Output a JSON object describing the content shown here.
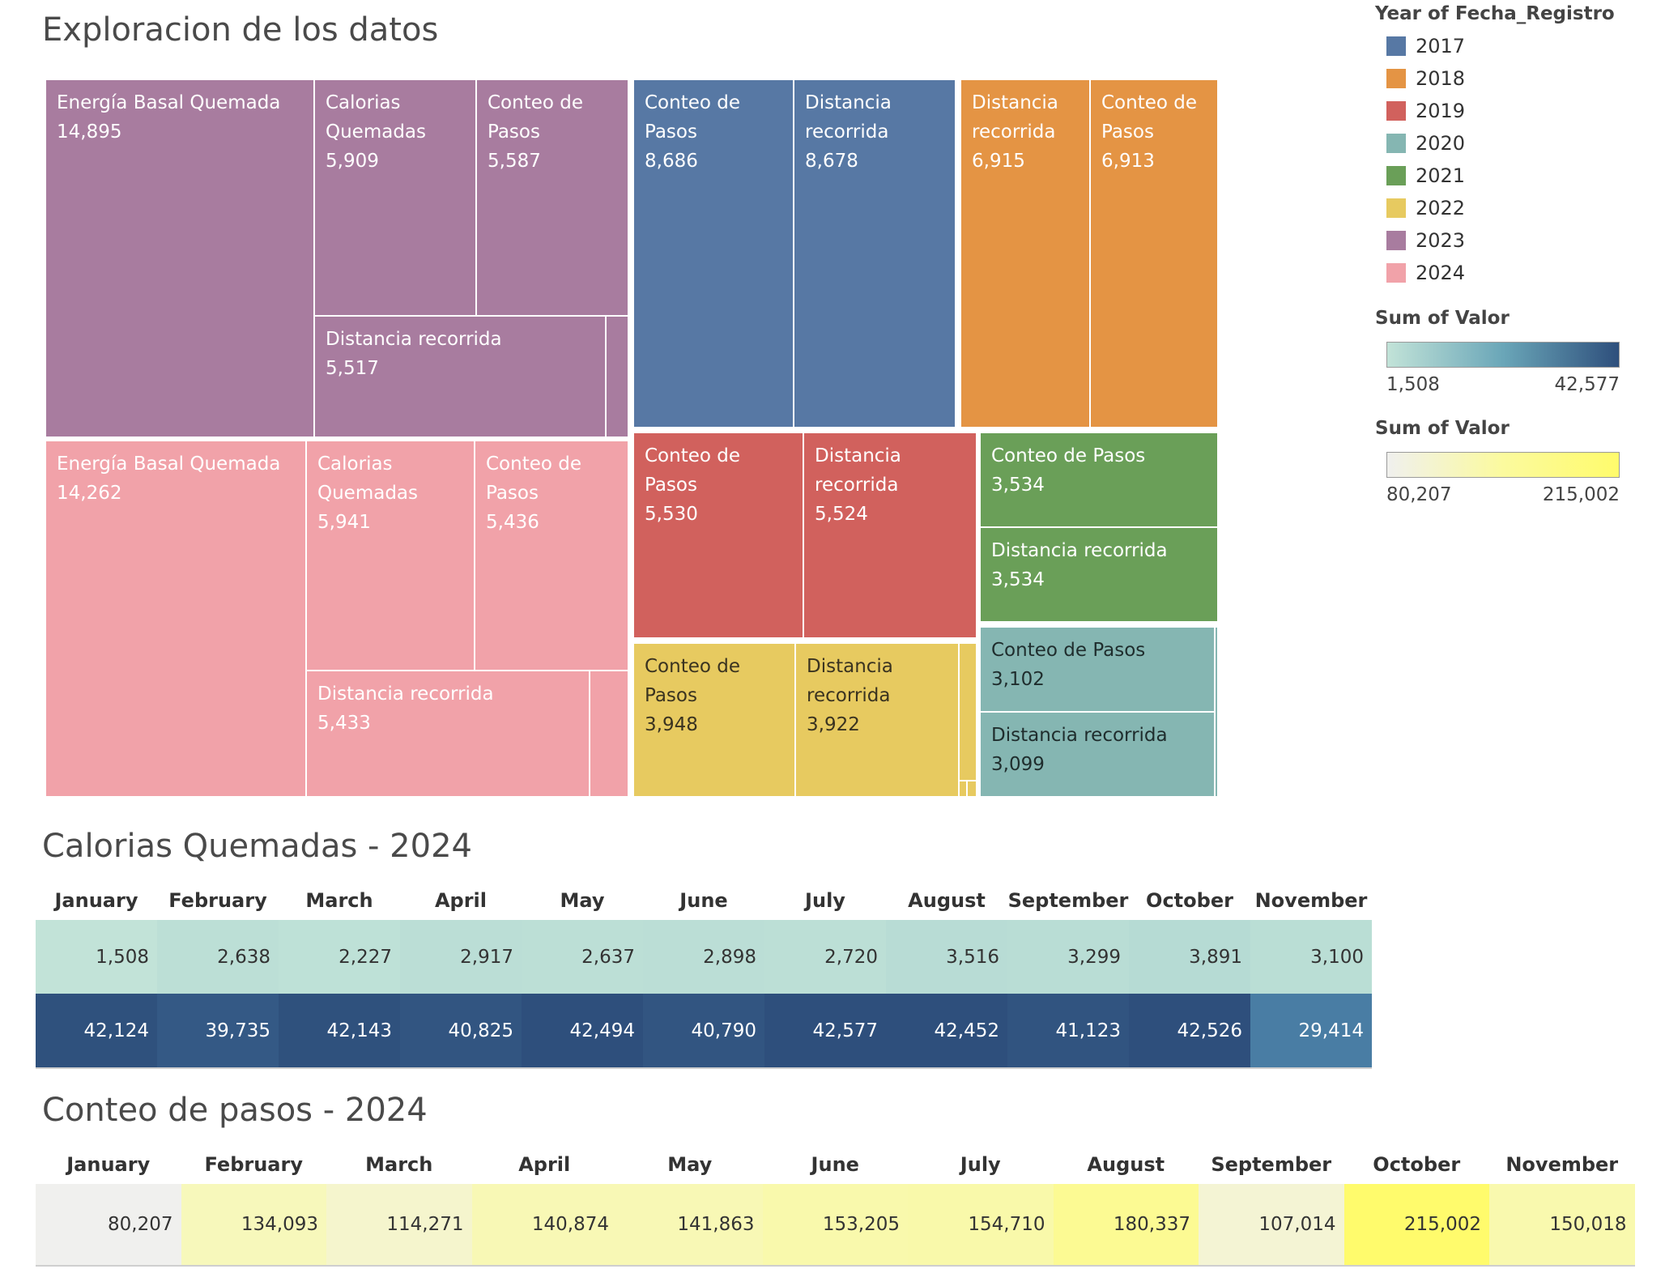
{
  "titles": {
    "treemap": "Exploracion de los datos",
    "calorias": "Calorias Quemadas - 2024",
    "pasos": "Conteo de pasos - 2024"
  },
  "legend": {
    "year_title": "Year of Fecha_Registro",
    "years": [
      {
        "label": "2017",
        "color": "#5778a4"
      },
      {
        "label": "2018",
        "color": "#e49444"
      },
      {
        "label": "2019",
        "color": "#d1615d"
      },
      {
        "label": "2020",
        "color": "#85b6b2"
      },
      {
        "label": "2021",
        "color": "#6a9f58"
      },
      {
        "label": "2022",
        "color": "#e7ca60"
      },
      {
        "label": "2023",
        "color": "#a87c9f"
      },
      {
        "label": "2024",
        "color": "#f1a2a9"
      }
    ],
    "ramp1": {
      "title": "Sum of Valor",
      "min": "1,508",
      "max": "42,577"
    },
    "ramp2": {
      "title": "Sum of Valor",
      "min": "80,207",
      "max": "215,002"
    }
  },
  "chart_data": [
    {
      "type": "treemap",
      "title": "Exploracion de los datos",
      "color_by": "Year of Fecha_Registro",
      "groups": [
        {
          "year": "2023",
          "items": [
            {
              "name": "Energía Basal Quemada",
              "value": 14895
            },
            {
              "name": "Calorias Quemadas",
              "value": 5909
            },
            {
              "name": "Conteo de Pasos",
              "value": 5587
            },
            {
              "name": "Distancia recorrida",
              "value": 5517
            }
          ]
        },
        {
          "year": "2024",
          "items": [
            {
              "name": "Energía Basal Quemada",
              "value": 14262
            },
            {
              "name": "Calorias Quemadas",
              "value": 5941
            },
            {
              "name": "Conteo de Pasos",
              "value": 5436
            },
            {
              "name": "Distancia recorrida",
              "value": 5433
            }
          ]
        },
        {
          "year": "2017",
          "items": [
            {
              "name": "Conteo de Pasos",
              "value": 8686
            },
            {
              "name": "Distancia recorrida",
              "value": 8678
            }
          ]
        },
        {
          "year": "2018",
          "items": [
            {
              "name": "Distancia recorrida",
              "value": 6915
            },
            {
              "name": "Conteo de Pasos",
              "value": 6913
            }
          ]
        },
        {
          "year": "2019",
          "items": [
            {
              "name": "Conteo de Pasos",
              "value": 5530
            },
            {
              "name": "Distancia recorrida",
              "value": 5524
            }
          ]
        },
        {
          "year": "2021",
          "items": [
            {
              "name": "Conteo de Pasos",
              "value": 3534
            },
            {
              "name": "Distancia recorrida",
              "value": 3534
            }
          ]
        },
        {
          "year": "2022",
          "items": [
            {
              "name": "Conteo de Pasos",
              "value": 3948
            },
            {
              "name": "Distancia recorrida",
              "value": 3922
            }
          ]
        },
        {
          "year": "2020",
          "items": [
            {
              "name": "Conteo de Pasos",
              "value": 3102
            },
            {
              "name": "Distancia recorrida",
              "value": 3099
            }
          ]
        }
      ]
    },
    {
      "type": "heatmap",
      "title": "Calorias Quemadas - 2024",
      "months": [
        "January",
        "February",
        "March",
        "April",
        "May",
        "June",
        "July",
        "August",
        "September",
        "October",
        "November"
      ],
      "rows": [
        [
          1508,
          2638,
          2227,
          2917,
          2637,
          2898,
          2720,
          3516,
          3299,
          3891,
          3100
        ],
        [
          42124,
          39735,
          42143,
          40825,
          42494,
          40790,
          42577,
          42452,
          41123,
          42526,
          29414
        ]
      ],
      "color_range": [
        1508,
        42577
      ]
    },
    {
      "type": "heatmap",
      "title": "Conteo de pasos - 2024",
      "months": [
        "January",
        "February",
        "March",
        "April",
        "May",
        "June",
        "July",
        "August",
        "September",
        "October",
        "November"
      ],
      "rows": [
        [
          80207,
          134093,
          114271,
          140874,
          141863,
          153205,
          154710,
          180337,
          107014,
          215002,
          150018
        ]
      ],
      "color_range": [
        80207,
        215002
      ]
    }
  ]
}
